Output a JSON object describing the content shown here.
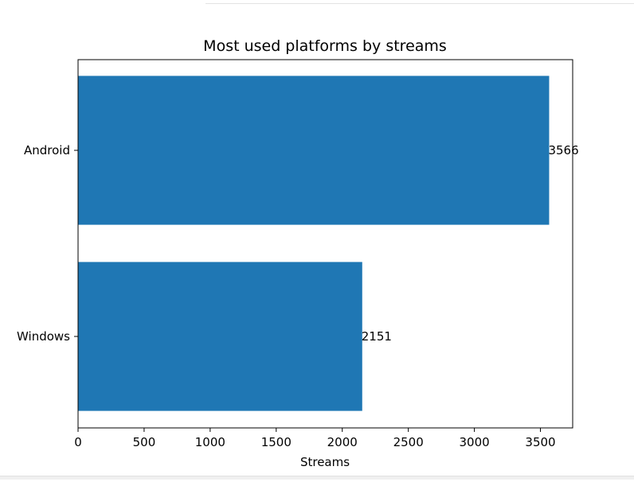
{
  "chart_data": {
    "type": "bar",
    "orientation": "horizontal",
    "title": "Most used platforms by streams",
    "xlabel": "Streams",
    "ylabel": "",
    "categories": [
      "Android",
      "Windows"
    ],
    "values": [
      3566,
      2151
    ],
    "data_labels": [
      "3566",
      "2151"
    ],
    "xlim": [
      0,
      3744
    ],
    "xticks": [
      0,
      500,
      1000,
      1500,
      2000,
      2500,
      3000,
      3500
    ],
    "xtick_labels": [
      "0",
      "500",
      "1000",
      "1500",
      "2000",
      "2500",
      "3000",
      "3500"
    ],
    "grid": false,
    "legend": "none",
    "bar_color": "#1f77b4"
  }
}
